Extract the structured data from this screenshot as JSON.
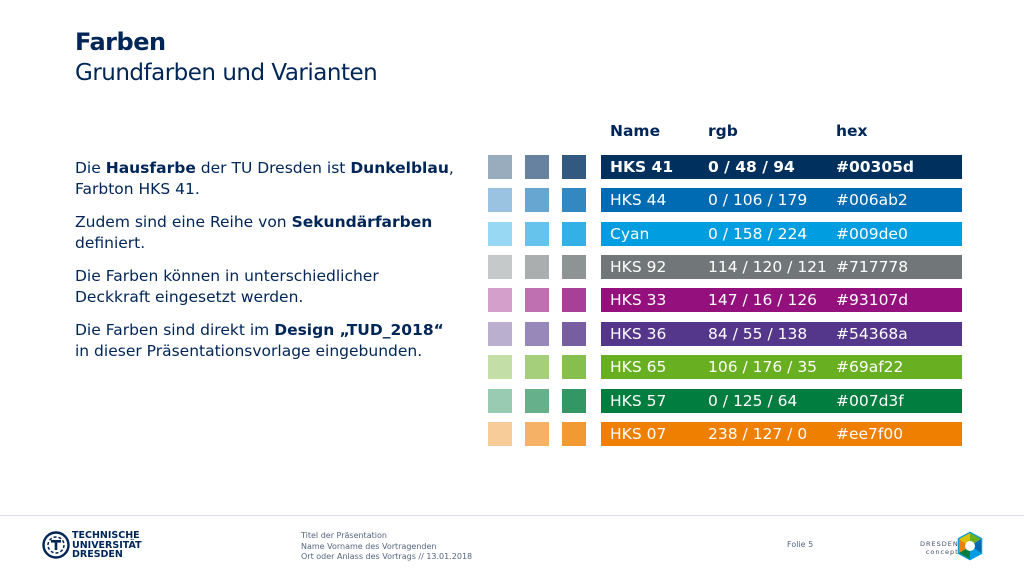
{
  "slide": {
    "title": "Farben",
    "subtitle": "Grundfarben und Varianten"
  },
  "body": {
    "p1": {
      "a": "Die ",
      "b": "Hausfarbe",
      "c": " der TU Dresden ist ",
      "d": "Dunkelblau",
      "e": ", Farbton HKS 41."
    },
    "p2": {
      "a": "Zudem sind eine Reihe von ",
      "b": "Sekundärfarben",
      "c": " definiert."
    },
    "p3": {
      "a": "Die Farben können in unterschiedlicher Deckkraft eingesetzt werden."
    },
    "p4": {
      "a": "Die Farben sind direkt im ",
      "b": "Design „TUD_2018“",
      "c": " in dieser Präsentationsvorlage eingebunden."
    }
  },
  "table": {
    "headers": {
      "name": "Name",
      "rgb": "rgb",
      "hex": "hex"
    },
    "rows": [
      {
        "name": "HKS 41",
        "rgb": "0 / 48 / 94",
        "hex": "#00305d",
        "color": "#00305d",
        "swatches": [
          "#99acbe",
          "#6682a0",
          "#335980"
        ]
      },
      {
        "name": "HKS 44",
        "rgb": "0 / 106 / 179",
        "hex": "#006ab2",
        "color": "#006ab2",
        "swatches": [
          "#99c3e0",
          "#66a6d1",
          "#3388c1"
        ]
      },
      {
        "name": "Cyan",
        "rgb": "0 / 158 / 224",
        "hex": "#009de0",
        "color": "#009de0",
        "swatches": [
          "#99d8f3",
          "#66c4ec",
          "#33b1e6"
        ]
      },
      {
        "name": "HKS 92",
        "rgb": "114 / 120 / 121",
        "hex": "#717778",
        "color": "#717778",
        "swatches": [
          "#c6c9c9",
          "#aaaeaf",
          "#8e9394"
        ]
      },
      {
        "name": "HKS 33",
        "rgb": "147 / 16 / 126",
        "hex": "#93107d",
        "color": "#93107d",
        "swatches": [
          "#d49fcb",
          "#be70b1",
          "#a94097"
        ]
      },
      {
        "name": "HKS 36",
        "rgb": "84 / 55 / 138",
        "hex": "#54368a",
        "color": "#54368a",
        "swatches": [
          "#bbafd0",
          "#9887b9",
          "#765ea1"
        ]
      },
      {
        "name": "HKS 65",
        "rgb": "106 / 176 / 35",
        "hex": "#69af22",
        "color": "#69af22",
        "swatches": [
          "#c3dfa7",
          "#a5cf7a",
          "#87bf4e"
        ]
      },
      {
        "name": "HKS 57",
        "rgb": "0 / 125 / 64",
        "hex": "#007d3f",
        "color": "#007d3f",
        "swatches": [
          "#99cbb2",
          "#66b18c",
          "#339765"
        ]
      },
      {
        "name": "HKS 07",
        "rgb": "238 / 127 / 0",
        "hex": "#ee7f00",
        "color": "#ee7f00",
        "swatches": [
          "#f8cc99",
          "#f5b266",
          "#f19933"
        ]
      }
    ]
  },
  "footer": {
    "logo_line1": "TECHNISCHE",
    "logo_line2": "UNIVERSITÄT",
    "logo_line3": "DRESDEN",
    "info_line1": "Titel der Präsentation",
    "info_line2": "Name Vorname des Vortragenden",
    "info_line3": "Ort oder Anlass des Vortrags // 13.01.2018",
    "folie": "Folie 5",
    "dresden_line1": "DRESDEN",
    "dresden_line2": "concept"
  },
  "icons": {
    "tu_logo": "tu-dresden-logo-icon",
    "dresden_logo": "dresden-concept-logo-icon"
  }
}
